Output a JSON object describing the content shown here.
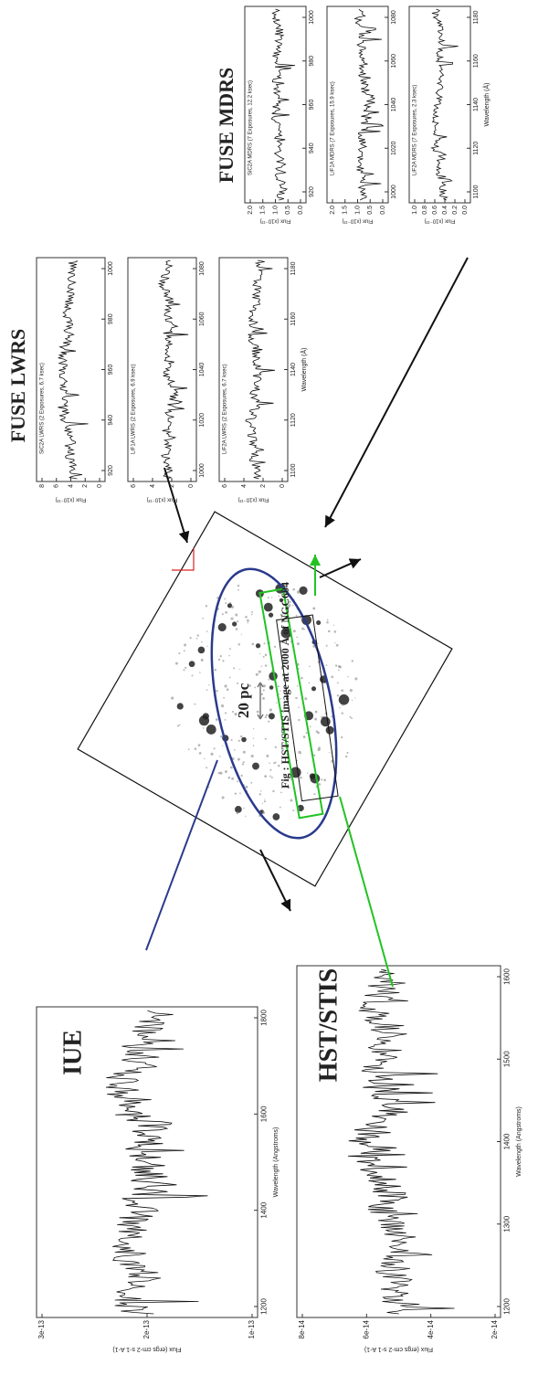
{
  "iue": {
    "title": "IUE",
    "ylabel": "Flux (ergs cm-2 s-1 A-1)",
    "xlabel": "Wavelength (Angstroms)",
    "yticks": [
      "1e-13",
      "2e-13",
      "3e-13"
    ],
    "xticks": [
      "1200",
      "1400",
      "1600",
      "1800"
    ]
  },
  "hst": {
    "title": "HST/STIS",
    "ylabel": "Flux (ergs cm-2 s-1 A-1)",
    "xlabel": "Wavelength (Angstroms)",
    "yticks": [
      "2e-14",
      "4e-14",
      "6e-14",
      "8e-14"
    ],
    "xticks": [
      "1200",
      "1300",
      "1400",
      "1500",
      "1600"
    ]
  },
  "fuse_lwrs": {
    "title": "FUSE LWRS",
    "ylabel": "Flux (x10⁻¹³)",
    "xlabel": "Wavelength (Å)",
    "panels": [
      {
        "label": "SiC2A LWRS (2 Exposures, 6.7 ksec)",
        "yticks": [
          "0",
          "2",
          "4",
          "6",
          "8"
        ],
        "xticks": [
          "920",
          "940",
          "960",
          "980",
          "1000"
        ]
      },
      {
        "label": "LiF1A LWRS (2 Exposures, 6.9 ksec)",
        "yticks": [
          "0",
          "2",
          "4",
          "6"
        ],
        "xticks": [
          "1000",
          "1020",
          "1040",
          "1060",
          "1080"
        ]
      },
      {
        "label": "LiF2A LWRS (2 Exposures, 6.7 ksec)",
        "yticks": [
          "0",
          "2",
          "4",
          "6"
        ],
        "xticks": [
          "1100",
          "1120",
          "1140",
          "1160",
          "1180"
        ]
      }
    ]
  },
  "fuse_mdrs": {
    "title": "FUSE MDRS",
    "ylabel": "Flux (x10⁻¹³)",
    "xlabel": "Wavelength (Å)",
    "panels": [
      {
        "label": "SiC2A MDRS (7 Exposures, 12.2 ksec)",
        "yticks": [
          "0.0",
          "0.5",
          "1.0",
          "1.5",
          "2.0"
        ],
        "xticks": [
          "920",
          "940",
          "960",
          "980",
          "1000"
        ]
      },
      {
        "label": "LiF1A MDRS (7 Exposures, 15.9 ksec)",
        "yticks": [
          "0.0",
          "0.5",
          "1.0",
          "1.5",
          "2.0"
        ],
        "xticks": [
          "1000",
          "1020",
          "1040",
          "1060",
          "1080"
        ]
      },
      {
        "label": "LiF2A MDRS (7 Exposures, 2.3 ksec)",
        "yticks": [
          "0.0",
          "0.2",
          "0.4",
          "0.6",
          "0.8",
          "1.0"
        ],
        "xticks": [
          "1100",
          "1120",
          "1140",
          "1160",
          "1180"
        ]
      }
    ]
  },
  "image": {
    "scale": "20 pc",
    "caption": "Fig : HST/STIS image at 2000 Å of NGC604"
  }
}
